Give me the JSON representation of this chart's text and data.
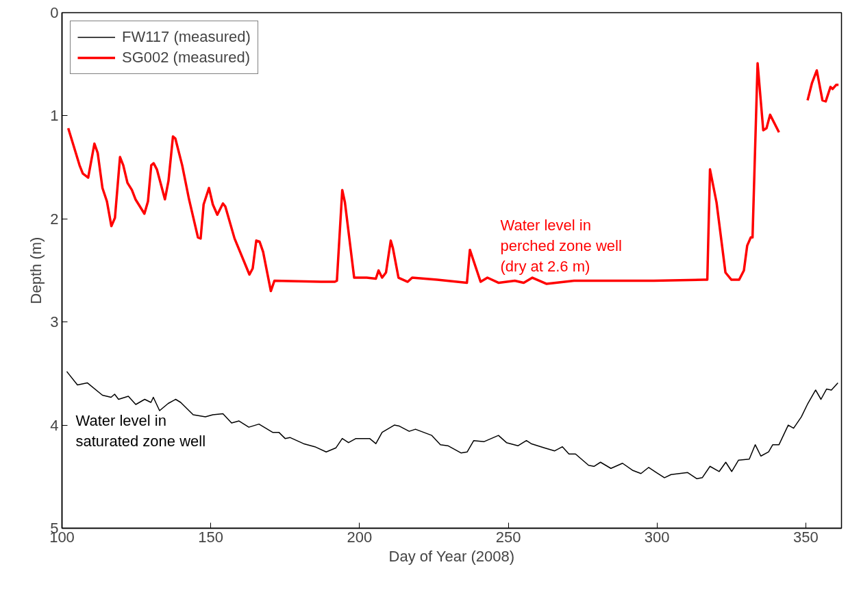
{
  "chart_data": {
    "type": "line",
    "xlabel": "Day of Year (2008)",
    "ylabel": "Depth (m)",
    "xlim": [
      100,
      362
    ],
    "xticks": [
      100,
      150,
      200,
      250,
      300,
      350
    ],
    "ylim": [
      5,
      0
    ],
    "yticks": [
      0,
      1,
      2,
      3,
      4,
      5
    ],
    "grid": false,
    "legend": "top left",
    "marker": "none",
    "line_style": "solid",
    "annotations": [
      "Water level in\nsaturated zone well",
      "Water level in\nperched zone well\n(dry at 2.6 m)"
    ],
    "series": [
      {
        "name": "FW117 (measured)",
        "color": "#000000",
        "x": [
          101.6,
          105.2,
          108.5,
          113.6,
          116.5,
          117.7,
          119.0,
          122.3,
          124.8,
          127.8,
          129.9,
          130.7,
          132.8,
          135.7,
          138.2,
          139.9,
          144.1,
          148.2,
          150.7,
          154.1,
          157.0,
          159.5,
          162.8,
          166.2,
          170.8,
          172.9,
          175.0,
          176.6,
          181.2,
          185.0,
          188.8,
          192.1,
          194.2,
          196.3,
          198.8,
          203.4,
          205.5,
          207.6,
          211.7,
          213.4,
          216.7,
          218.8,
          224.3,
          227.2,
          229.7,
          234.1,
          236.2,
          238.4,
          241.9,
          246.7,
          249.4,
          253.3,
          256.1,
          257.7,
          262.1,
          265.6,
          268.2,
          270.4,
          272.6,
          277.0,
          278.8,
          281.0,
          284.5,
          288.4,
          291.9,
          294.6,
          297.2,
          299.8,
          302.5,
          304.7,
          310.3,
          313.4,
          315.2,
          317.8,
          320.9,
          323.1,
          325.1,
          327.4,
          331.0,
          333.0,
          334.9,
          337.5,
          338.9,
          341.0,
          344.1,
          345.9,
          348.5,
          350.7,
          353.3,
          355.1,
          357.0,
          358.6,
          360.8
        ],
        "values": [
          3.48,
          3.61,
          3.59,
          3.71,
          3.73,
          3.7,
          3.75,
          3.72,
          3.8,
          3.75,
          3.78,
          3.73,
          3.86,
          3.79,
          3.75,
          3.78,
          3.9,
          3.92,
          3.9,
          3.89,
          3.98,
          3.96,
          4.02,
          3.99,
          4.07,
          4.07,
          4.13,
          4.12,
          4.18,
          4.21,
          4.26,
          4.22,
          4.13,
          4.17,
          4.13,
          4.13,
          4.18,
          4.07,
          4.0,
          4.01,
          4.06,
          4.04,
          4.1,
          4.19,
          4.2,
          4.27,
          4.26,
          4.15,
          4.16,
          4.1,
          4.17,
          4.2,
          4.15,
          4.18,
          4.22,
          4.25,
          4.21,
          4.28,
          4.28,
          4.39,
          4.4,
          4.36,
          4.42,
          4.37,
          4.44,
          4.47,
          4.41,
          4.46,
          4.51,
          4.48,
          4.46,
          4.52,
          4.51,
          4.4,
          4.45,
          4.36,
          4.45,
          4.34,
          4.33,
          4.19,
          4.3,
          4.26,
          4.19,
          4.19,
          4.0,
          4.03,
          3.92,
          3.79,
          3.66,
          3.75,
          3.65,
          3.66,
          3.59
        ]
      },
      {
        "name": "SG002 (measured)",
        "color": "#ff0000",
        "x": [
          102.1,
          105.9,
          107.0,
          108.8,
          110.9,
          112.0,
          113.6,
          115.1,
          116.6,
          117.8,
          119.5,
          120.6,
          122.0,
          123.5,
          124.7,
          127.7,
          128.9,
          130.0,
          130.8,
          131.9,
          134.6,
          135.8,
          137.3,
          138.1,
          140.4,
          142.7,
          145.7,
          146.6,
          147.6,
          149.4,
          150.7,
          152.2,
          154.1,
          154.9,
          158.0,
          163.0,
          164.1,
          165.3,
          166.4,
          167.6,
          170.2,
          171.4,
          187.1,
          191.7,
          192.4,
          194.2,
          195.1,
          198.2,
          202.4,
          205.5,
          206.4,
          207.6,
          208.9,
          210.5,
          211.2,
          213.1,
          216.2,
          217.7,
          226.1,
          236.1,
          237.1,
          240.7,
          243.0,
          246.8,
          252.2,
          255.2,
          258.1,
          262.9,
          272.1,
          298.9,
          315.8,
          316.9,
          317.8,
          320.0,
          323.0,
          325.0,
          327.6,
          329.2,
          330.3,
          331.5,
          332.1,
          333.8,
          335.7,
          336.8,
          338.0,
          341.0,
          346.0,
          350.6,
          352.1,
          353.7,
          355.6,
          356.7,
          358.3,
          359.0,
          360.2,
          361.0
        ],
        "values": [
          1.12,
          1.48,
          1.56,
          1.6,
          1.27,
          1.36,
          1.7,
          1.83,
          2.07,
          1.99,
          1.4,
          1.48,
          1.65,
          1.72,
          1.81,
          1.95,
          1.83,
          1.48,
          1.46,
          1.52,
          1.81,
          1.63,
          1.2,
          1.22,
          1.48,
          1.81,
          2.18,
          2.19,
          1.86,
          1.7,
          1.86,
          1.96,
          1.85,
          1.88,
          2.19,
          2.54,
          2.48,
          2.21,
          2.22,
          2.32,
          2.7,
          2.6,
          2.61,
          2.61,
          2.6,
          1.72,
          1.84,
          2.57,
          2.57,
          2.58,
          2.5,
          2.57,
          2.52,
          2.21,
          2.28,
          2.57,
          2.61,
          2.57,
          2.59,
          2.62,
          2.3,
          2.61,
          2.57,
          2.62,
          2.6,
          2.62,
          2.57,
          2.63,
          2.6,
          2.6,
          2.59,
          2.59,
          1.52,
          1.84,
          2.52,
          2.59,
          2.59,
          2.5,
          2.26,
          2.18,
          2.18,
          0.49,
          1.14,
          1.12,
          0.99,
          1.16,
          null,
          0.85,
          0.68,
          0.56,
          0.85,
          0.86,
          0.72,
          0.74,
          0.7,
          0.7
        ]
      }
    ]
  }
}
